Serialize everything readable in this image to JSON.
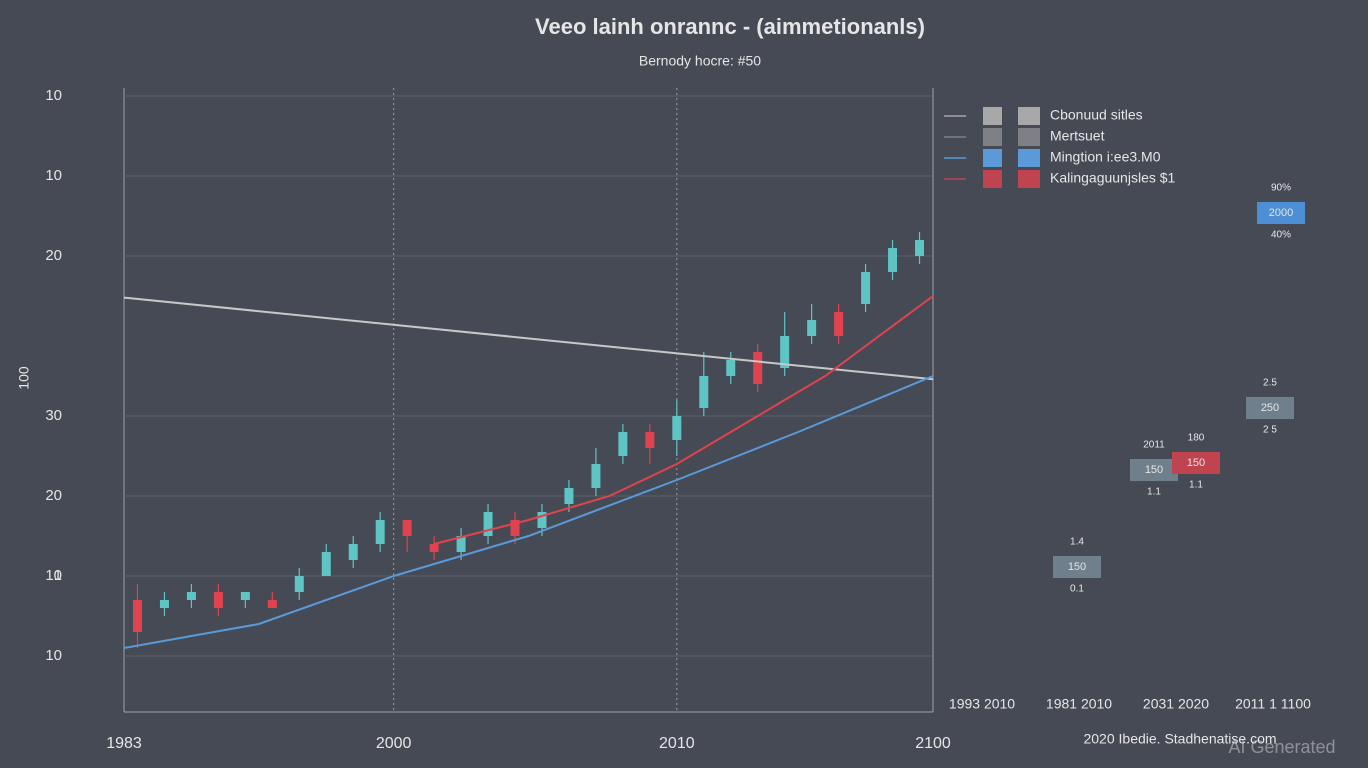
{
  "chart_data": {
    "type": "candlestick",
    "title": "Veeo lainh onrannc - (aimmetionanls)",
    "subtitle": "Bernody hocre: #50",
    "y_label": "100",
    "xlim": [
      0,
      60
    ],
    "xticks": [
      {
        "value": 0,
        "label": "1983"
      },
      {
        "value": 20,
        "label": "2000"
      },
      {
        "value": 41,
        "label": "2010"
      },
      {
        "value": 60,
        "label": "2100"
      }
    ],
    "ylim": [
      -4,
      71
    ],
    "yticks": [
      {
        "value": 0,
        "label": "10"
      },
      {
        "value": 10,
        "label": "1"
      },
      10,
      20,
      30,
      {
        "value": 50,
        "label": "20"
      },
      {
        "value": 60,
        "label": "10"
      },
      {
        "value": 70,
        "label": "10"
      }
    ],
    "grid": true,
    "up_color": "#5fc4c4",
    "down_color": "#e0434f",
    "candles": {
      "x": [
        1,
        3,
        5,
        7,
        9,
        11,
        13,
        15,
        17,
        19,
        21,
        23,
        25,
        27,
        29,
        31,
        33,
        35,
        37,
        39,
        41,
        43,
        45,
        47,
        49,
        51,
        53,
        55,
        57,
        59
      ],
      "open": [
        7,
        6,
        7,
        8,
        7,
        7,
        8,
        10,
        12,
        14,
        17,
        14,
        13,
        15,
        17,
        16,
        19,
        21,
        25,
        28,
        27,
        31,
        35,
        38,
        36,
        40,
        43,
        44,
        48,
        50
      ],
      "close": [
        3,
        7,
        8,
        6,
        8,
        6,
        10,
        13,
        14,
        17,
        15,
        13,
        15,
        18,
        15,
        18,
        21,
        24,
        28,
        26,
        30,
        35,
        37,
        34,
        40,
        42,
        40,
        48,
        51,
        52
      ],
      "high": [
        9,
        8,
        9,
        9,
        8,
        8,
        11,
        14,
        15,
        18,
        17,
        15,
        16,
        19,
        18,
        19,
        22,
        26,
        29,
        29,
        32,
        38,
        38,
        39,
        43,
        44,
        44,
        49,
        52,
        53
      ],
      "low": [
        1,
        5,
        6,
        5,
        6,
        6,
        7,
        10,
        11,
        13,
        13,
        12,
        12,
        14,
        14,
        15,
        18,
        20,
        24,
        24,
        25,
        30,
        34,
        33,
        35,
        39,
        39,
        43,
        47,
        49
      ]
    },
    "series": [
      {
        "name": "Cbonuud sitles",
        "color": "#c8c8c8",
        "x": [
          0,
          60
        ],
        "values": [
          44.8,
          34.6
        ]
      },
      {
        "name": "Mingtion i:ee3.M0",
        "color": "#5a9ad8",
        "x": [
          0,
          10,
          20,
          30,
          41,
          50,
          60
        ],
        "values": [
          1,
          4,
          10,
          15,
          22,
          28,
          35
        ]
      },
      {
        "name": "Kalingaguunjsles $1",
        "color": "#e0434f",
        "x": [
          23,
          30,
          36,
          41,
          47,
          52,
          56,
          60
        ],
        "values": [
          14,
          17,
          20,
          24,
          30,
          35,
          40,
          45
        ]
      }
    ],
    "legend": [
      {
        "label": "Cbonuud sitles",
        "color": "#a8a8a8"
      },
      {
        "label": "Mertsuet",
        "color": "#7e8085"
      },
      {
        "label": "Mingtion i:ee3.M0",
        "color": "#5a9ad8"
      },
      {
        "label": "Kalingaguunjsles $1",
        "color": "#c0444f"
      }
    ],
    "side_boxes": [
      {
        "label": "2000",
        "above": "90%",
        "below": "40%",
        "color": "#4d8fd4"
      },
      {
        "label": "250",
        "above": "2.5",
        "below": "2 5",
        "color": "#6f7f8c"
      },
      {
        "label": "150",
        "above": "2011",
        "below": "1.1",
        "color": "#6f7f8c"
      },
      {
        "label": "150",
        "above": "180",
        "below": "1.1",
        "color": "#c0444f"
      },
      {
        "label": "150",
        "above": "1.4",
        "below": "0.1",
        "color": "#6f7f8c"
      }
    ],
    "bottom_labels": [
      "1993 2010",
      "1981 2010",
      "2031 2020",
      "2011 1 1100"
    ],
    "source": "2020 Ibedie. Stadhenatise.com",
    "watermark": "AI Generated"
  }
}
